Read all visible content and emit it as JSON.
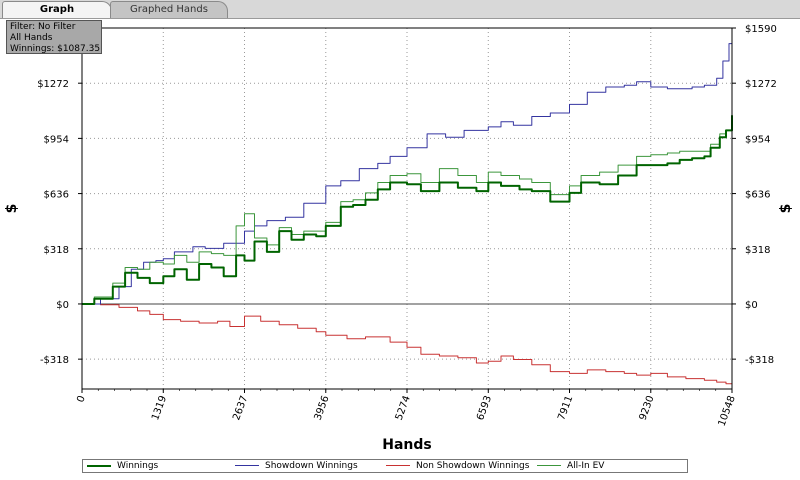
{
  "tabs": [
    {
      "label": "Graph",
      "active": true
    },
    {
      "label": "Graphed Hands",
      "active": false
    }
  ],
  "info_box": {
    "filter": "Filter: No Filter",
    "hands": "All Hands",
    "winnings": "Winnings: $1087.35"
  },
  "chart_data": {
    "type": "line",
    "xlabel": "Hands",
    "ylabel": "$",
    "xlim": [
      0,
      10548
    ],
    "ylim": [
      -490,
      1590
    ],
    "x_ticks": [
      {
        "value": 0,
        "label": "0"
      },
      {
        "value": 1319,
        "label": "1319"
      },
      {
        "value": 2637,
        "label": "2637"
      },
      {
        "value": 3956,
        "label": "3956"
      },
      {
        "value": 5274,
        "label": "5274"
      },
      {
        "value": 6593,
        "label": "6593"
      },
      {
        "value": 7911,
        "label": "7911"
      },
      {
        "value": 9230,
        "label": "9230"
      },
      {
        "value": 10548,
        "label": "10548"
      }
    ],
    "y_ticks": [
      {
        "value": -318,
        "label": "-$318"
      },
      {
        "value": 0,
        "label": "$0"
      },
      {
        "value": 318,
        "label": "$318"
      },
      {
        "value": 636,
        "label": "$636"
      },
      {
        "value": 954,
        "label": "$954"
      },
      {
        "value": 1272,
        "label": "$1272"
      },
      {
        "value": 1590,
        "label": "$1590"
      }
    ],
    "grid": true,
    "legend_position": "bottom",
    "series": [
      {
        "name": "Winnings",
        "color": "#006400",
        "width": 2,
        "x": [
          0,
          200,
          500,
          700,
          900,
          1100,
          1319,
          1500,
          1700,
          1900,
          2100,
          2300,
          2500,
          2637,
          2800,
          3000,
          3200,
          3400,
          3600,
          3800,
          3956,
          4200,
          4400,
          4600,
          4800,
          5000,
          5274,
          5500,
          5800,
          6100,
          6400,
          6593,
          6800,
          7100,
          7300,
          7600,
          7911,
          8100,
          8400,
          8700,
          9000,
          9230,
          9500,
          9700,
          9900,
          10100,
          10200,
          10350,
          10450,
          10548
        ],
        "y": [
          0,
          30,
          100,
          180,
          150,
          120,
          160,
          200,
          140,
          230,
          210,
          160,
          280,
          250,
          360,
          300,
          420,
          370,
          400,
          390,
          450,
          560,
          570,
          600,
          660,
          700,
          690,
          650,
          700,
          670,
          650,
          700,
          680,
          660,
          650,
          590,
          640,
          700,
          690,
          740,
          800,
          800,
          810,
          830,
          840,
          850,
          900,
          960,
          1000,
          1087
        ]
      },
      {
        "name": "Showdown Winnings",
        "color": "#3434a0",
        "width": 1,
        "x": [
          0,
          300,
          600,
          800,
          1000,
          1200,
          1319,
          1500,
          1800,
          2000,
          2300,
          2637,
          2800,
          3000,
          3300,
          3600,
          3956,
          4200,
          4500,
          4800,
          5000,
          5274,
          5600,
          5900,
          6200,
          6593,
          6800,
          7000,
          7300,
          7600,
          7911,
          8200,
          8500,
          8800,
          9000,
          9230,
          9500,
          9700,
          9900,
          10100,
          10300,
          10400,
          10500,
          10548
        ],
        "y": [
          0,
          30,
          100,
          200,
          240,
          250,
          260,
          300,
          330,
          320,
          350,
          420,
          450,
          480,
          500,
          580,
          680,
          710,
          780,
          810,
          850,
          900,
          980,
          960,
          1000,
          1020,
          1050,
          1030,
          1080,
          1100,
          1150,
          1220,
          1250,
          1260,
          1280,
          1250,
          1240,
          1240,
          1250,
          1260,
          1300,
          1400,
          1500,
          1590
        ]
      },
      {
        "name": "Non Showdown Winnings",
        "color": "#c83232",
        "width": 1,
        "x": [
          0,
          300,
          600,
          900,
          1100,
          1319,
          1600,
          1900,
          2200,
          2400,
          2637,
          2900,
          3200,
          3500,
          3800,
          3956,
          4300,
          4600,
          5000,
          5274,
          5500,
          5800,
          6100,
          6400,
          6593,
          6800,
          7000,
          7300,
          7600,
          7911,
          8200,
          8500,
          8800,
          9000,
          9230,
          9500,
          9800,
          10100,
          10300,
          10450,
          10548
        ],
        "y": [
          0,
          -5,
          -20,
          -40,
          -60,
          -90,
          -100,
          -110,
          -100,
          -130,
          -70,
          -100,
          -120,
          -140,
          -160,
          -180,
          -200,
          -190,
          -220,
          -250,
          -290,
          -300,
          -310,
          -340,
          -330,
          -300,
          -320,
          -350,
          -390,
          -400,
          -380,
          -390,
          -400,
          -410,
          -400,
          -420,
          -430,
          -440,
          -450,
          -460,
          -490
        ]
      },
      {
        "name": "All-In EV",
        "color": "#3c963c",
        "width": 1,
        "x": [
          0,
          200,
          500,
          700,
          900,
          1100,
          1319,
          1500,
          1700,
          1900,
          2100,
          2300,
          2500,
          2637,
          2800,
          3000,
          3200,
          3400,
          3600,
          3800,
          3956,
          4200,
          4400,
          4600,
          4800,
          5000,
          5274,
          5500,
          5800,
          6100,
          6400,
          6593,
          6800,
          7100,
          7300,
          7600,
          7911,
          8100,
          8400,
          8700,
          9000,
          9230,
          9500,
          9700,
          9900,
          10100,
          10200,
          10350,
          10450,
          10548
        ],
        "y": [
          0,
          40,
          120,
          210,
          200,
          240,
          230,
          280,
          240,
          300,
          290,
          280,
          450,
          520,
          380,
          340,
          440,
          400,
          420,
          420,
          470,
          590,
          600,
          640,
          700,
          740,
          750,
          700,
          780,
          740,
          700,
          760,
          740,
          720,
          700,
          630,
          680,
          740,
          760,
          800,
          850,
          860,
          870,
          880,
          880,
          880,
          920,
          980,
          1000,
          1040
        ]
      }
    ]
  }
}
